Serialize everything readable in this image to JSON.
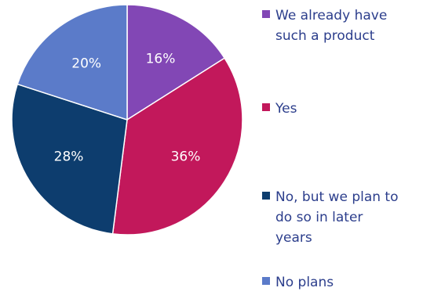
{
  "chart_data": {
    "type": "pie",
    "slices": [
      {
        "label": "We already have such a product",
        "value": 16,
        "value_label": "16%",
        "color": "#8247b5"
      },
      {
        "label": "Yes",
        "value": 36,
        "value_label": "36%",
        "color": "#c2185b"
      },
      {
        "label": "No, but we plan to do so in later years",
        "value": 28,
        "value_label": "28%",
        "color": "#0d3d6e"
      },
      {
        "label": "No plans",
        "value": 20,
        "value_label": "20%",
        "color": "#5b7bc9"
      }
    ],
    "start_angle": "top",
    "direction": "clockwise",
    "legend_position": "right"
  },
  "legend_lines": [
    [
      "We already have",
      "such a product"
    ],
    [
      "Yes"
    ],
    [
      "No, but we plan to",
      "do so in later",
      "years"
    ],
    [
      "No plans"
    ]
  ]
}
